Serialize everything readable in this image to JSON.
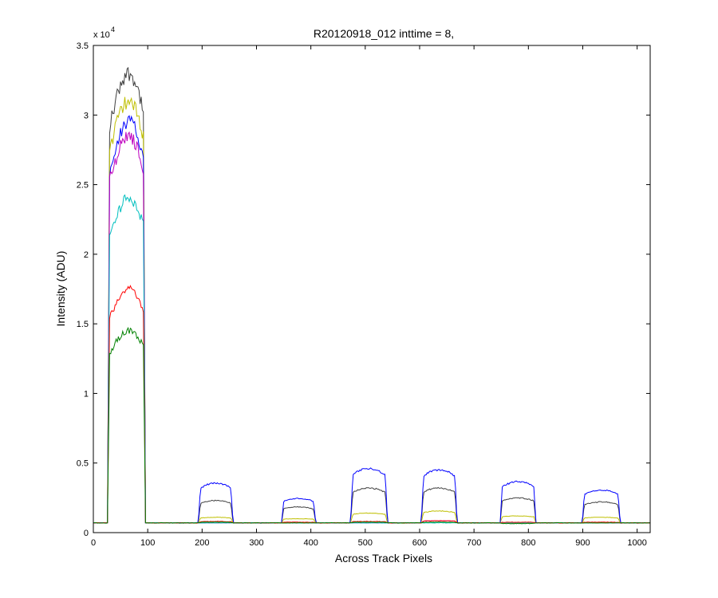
{
  "chart_data": {
    "type": "line",
    "title": "R20120918_012 inttime = 8,",
    "xlabel": "Across Track Pixels",
    "ylabel": "Intensity (ADU)",
    "y_exponent_label": "x 10",
    "y_exponent_power": "4",
    "xlim": [
      0,
      1024
    ],
    "ylim": [
      0,
      35000
    ],
    "grid": false,
    "x_ticks": [
      0,
      100,
      200,
      300,
      400,
      500,
      600,
      700,
      800,
      900,
      1000
    ],
    "x_tick_labels": [
      "0",
      "100",
      "200",
      "300",
      "400",
      "500",
      "600",
      "700",
      "800",
      "900",
      "1000"
    ],
    "y_ticks": [
      0,
      5000,
      10000,
      15000,
      20000,
      25000,
      30000,
      35000
    ],
    "y_tick_labels": [
      "0",
      "0.5",
      "1",
      "1.5",
      "2",
      "2.5",
      "3",
      "3.5"
    ],
    "baseline": 700,
    "plateaus": [
      {
        "start": 30,
        "end": 92
      },
      {
        "start": 197,
        "end": 253
      },
      {
        "start": 350,
        "end": 405
      },
      {
        "start": 477,
        "end": 537
      },
      {
        "start": 607,
        "end": 665
      },
      {
        "start": 752,
        "end": 810
      },
      {
        "start": 903,
        "end": 965
      }
    ],
    "series": [
      {
        "color": "#404040",
        "peaks": [
          33000,
          2300,
          1850,
          3200,
          3200,
          2500,
          2200
        ]
      },
      {
        "color": "#bfbf00",
        "peaks": [
          31000,
          1100,
          1000,
          1400,
          1550,
          1200,
          1100
        ]
      },
      {
        "color": "#0000ff",
        "peaks": [
          29500,
          3550,
          2450,
          4600,
          4500,
          3650,
          3050
        ]
      },
      {
        "color": "#bf00bf",
        "peaks": [
          28500,
          700,
          700,
          700,
          850,
          700,
          700
        ]
      },
      {
        "color": "#00bfbf",
        "peaks": [
          24000,
          700,
          700,
          700,
          700,
          700,
          700
        ]
      },
      {
        "color": "#ff0000",
        "peaks": [
          17500,
          800,
          750,
          800,
          850,
          750,
          750
        ]
      },
      {
        "color": "#008000",
        "peaks": [
          14500,
          750,
          700,
          750,
          750,
          650,
          700
        ]
      }
    ]
  }
}
